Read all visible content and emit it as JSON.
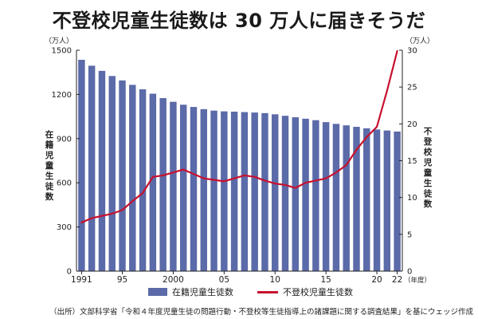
{
  "title": "不登校児童生徒数は 30 万人に届きそうだ",
  "source": "（出所）文部科学省「令和４年度児童生徒の問題行動・不登校等生徒指導上の諸課題に関する調査結果」を基にウェッジ作成",
  "colors": {
    "bar": "#5b6aa8",
    "line": "#c8102e",
    "axis": "#222222"
  },
  "chart_data": {
    "type": "bar",
    "x": [
      1991,
      1992,
      1993,
      1994,
      1995,
      1996,
      1997,
      1998,
      1999,
      2000,
      2001,
      2002,
      2003,
      2004,
      2005,
      2006,
      2007,
      2008,
      2009,
      2010,
      2011,
      2012,
      2013,
      2014,
      2015,
      2016,
      2017,
      2018,
      2019,
      2020,
      2021,
      2022
    ],
    "x_tick_labels": [
      {
        "x": 1991,
        "label": "1991"
      },
      {
        "x": 1995,
        "label": "95"
      },
      {
        "x": 2000,
        "label": "2000"
      },
      {
        "x": 2005,
        "label": "05"
      },
      {
        "x": 2010,
        "label": "10"
      },
      {
        "x": 2015,
        "label": "15"
      },
      {
        "x": 2020,
        "label": "20"
      },
      {
        "x": 2022,
        "label": "22"
      }
    ],
    "x_unit": "（年度）",
    "series": [
      {
        "name": "在籍児童生徒数",
        "type": "bar",
        "axis": "left",
        "values": [
          1435,
          1395,
          1360,
          1325,
          1295,
          1265,
          1235,
          1205,
          1175,
          1150,
          1130,
          1115,
          1100,
          1090,
          1085,
          1083,
          1080,
          1077,
          1073,
          1065,
          1055,
          1045,
          1035,
          1025,
          1012,
          1000,
          990,
          980,
          970,
          962,
          955,
          948
        ]
      },
      {
        "name": "不登校児童生徒数",
        "type": "line",
        "axis": "right",
        "values": [
          6.6,
          7.2,
          7.5,
          7.8,
          8.3,
          9.5,
          10.6,
          12.8,
          13.0,
          13.4,
          13.8,
          13.2,
          12.6,
          12.4,
          12.2,
          12.6,
          13.0,
          12.8,
          12.3,
          11.9,
          11.7,
          11.3,
          12.0,
          12.3,
          12.6,
          13.4,
          14.4,
          16.5,
          18.2,
          19.6,
          24.5,
          29.9
        ]
      }
    ],
    "y_left": {
      "label": "在籍児童生徒数",
      "unit": "（万人）",
      "ylim": [
        0,
        1500
      ],
      "ticks": [
        0,
        300,
        600,
        900,
        1200,
        1500
      ]
    },
    "y_right": {
      "label": "不登校児童生徒数",
      "unit": "（万人）",
      "ylim": [
        0,
        30
      ],
      "ticks": [
        0,
        5,
        10,
        15,
        20,
        25,
        30
      ]
    },
    "grid": false,
    "legend_position": "bottom"
  }
}
